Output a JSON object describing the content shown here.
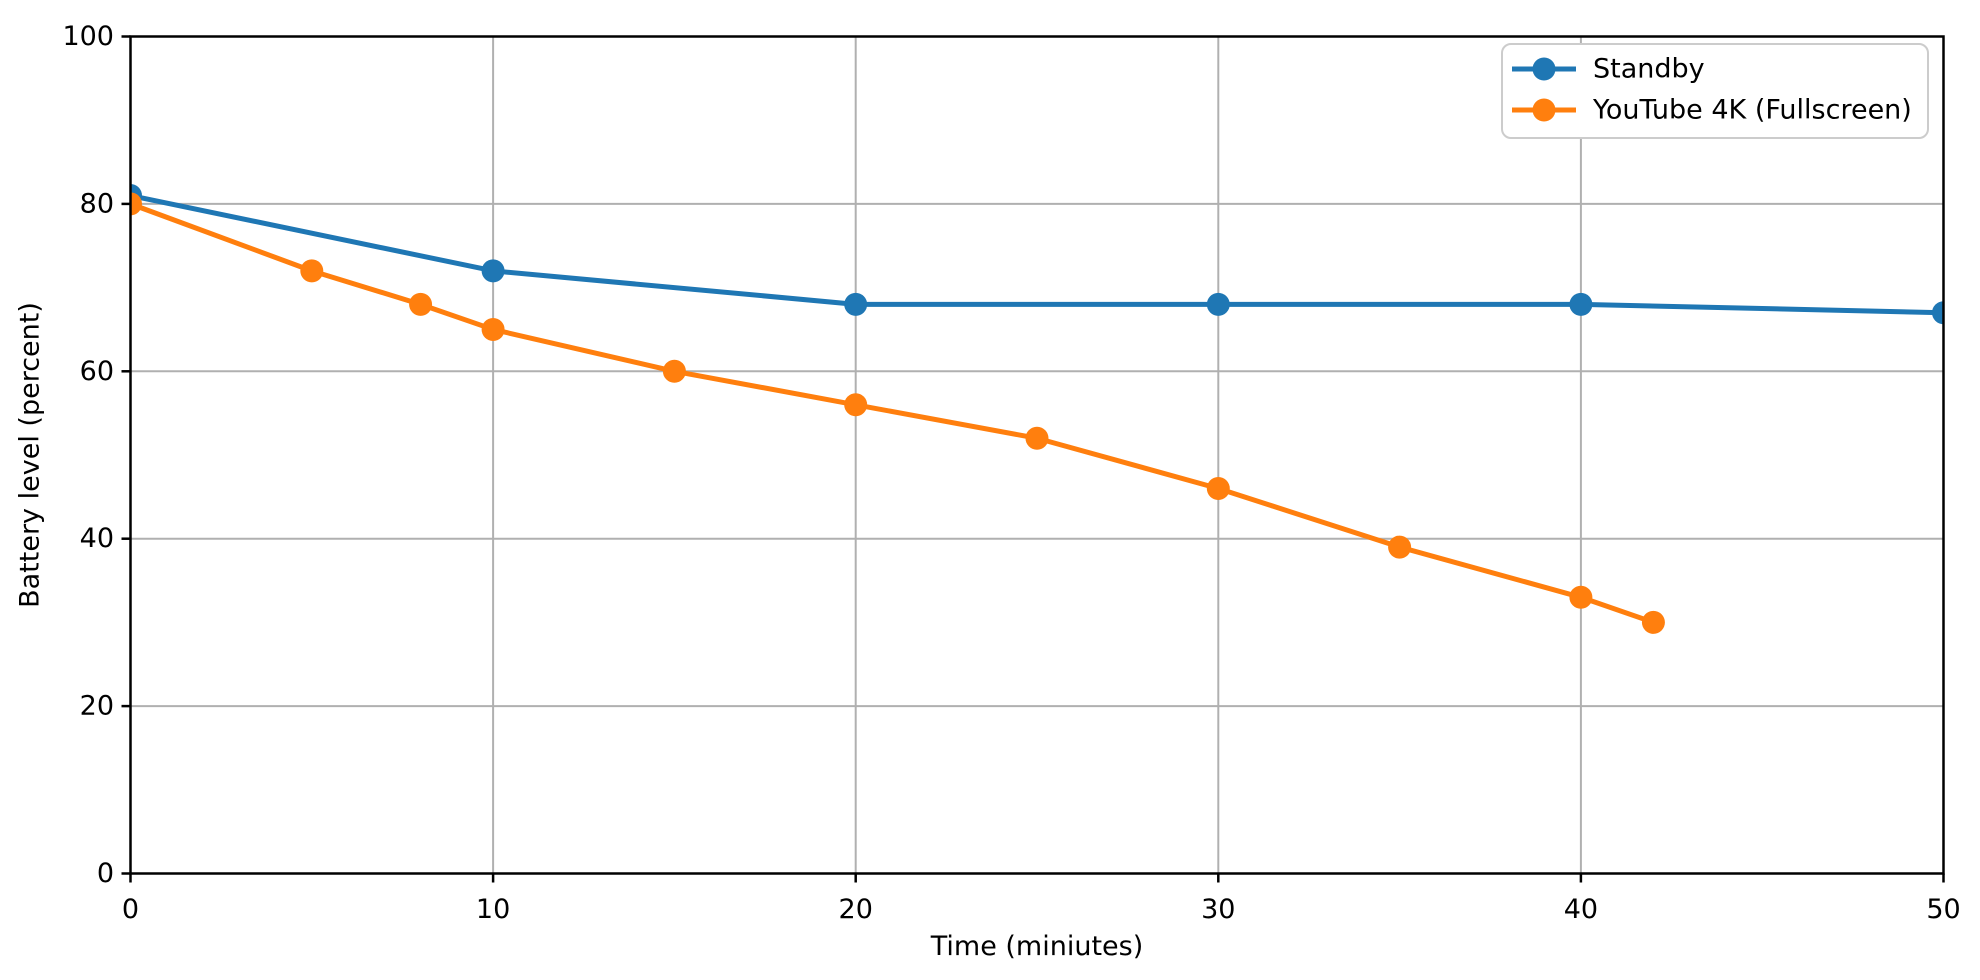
{
  "chart_data": {
    "type": "line",
    "title": "",
    "xlabel": "Time (miniutes)",
    "ylabel": "Battery level (percent)",
    "xlim": [
      0,
      50
    ],
    "ylim": [
      0,
      100
    ],
    "xticks": [
      "0",
      "10",
      "20",
      "30",
      "40",
      "50"
    ],
    "yticks": [
      "0",
      "20",
      "40",
      "60",
      "80",
      "100"
    ],
    "grid": true,
    "grid_color": "#b0b0b0",
    "axis_color": "#000000",
    "background_color": "#ffffff",
    "legend_position": "upper right",
    "legend_border_color": "#cccccc",
    "series": [
      {
        "name": "Standby",
        "color": "#1f77b4",
        "x": [
          0,
          10,
          20,
          30,
          40,
          50
        ],
        "y": [
          81,
          72,
          68,
          68,
          68,
          67
        ]
      },
      {
        "name": "YouTube 4K (Fullscreen)",
        "color": "#ff7f0e",
        "x": [
          0,
          5,
          8,
          10,
          15,
          20,
          25,
          30,
          35,
          40,
          42
        ],
        "y": [
          80,
          72,
          68,
          65,
          60,
          56,
          52,
          46,
          39,
          33,
          30
        ]
      }
    ]
  }
}
